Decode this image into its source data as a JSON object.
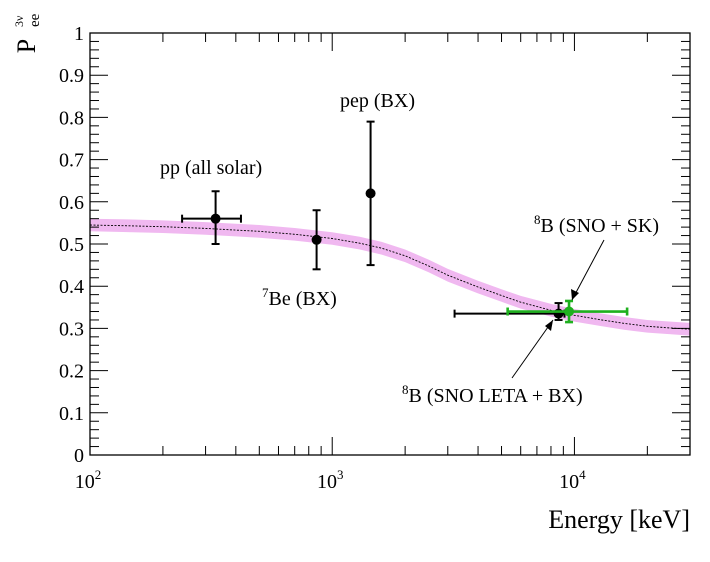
{
  "chart_data": {
    "type": "scatter",
    "xscale": "log",
    "xlim": [
      100,
      30000
    ],
    "ylim": [
      0,
      1
    ],
    "xlabel": "Energy [keV]",
    "ylabel_main": "P",
    "ylabel_sup": "3ν",
    "ylabel_sub": "ee",
    "y_ticks": [
      {
        "v": 0,
        "label": "0"
      },
      {
        "v": 0.1,
        "label": "0.1"
      },
      {
        "v": 0.2,
        "label": "0.2"
      },
      {
        "v": 0.3,
        "label": "0.3"
      },
      {
        "v": 0.4,
        "label": "0.4"
      },
      {
        "v": 0.5,
        "label": "0.5"
      },
      {
        "v": 0.6,
        "label": "0.6"
      },
      {
        "v": 0.7,
        "label": "0.7"
      },
      {
        "v": 0.8,
        "label": "0.8"
      },
      {
        "v": 0.9,
        "label": "0.9"
      },
      {
        "v": 1,
        "label": "1"
      }
    ],
    "x_ticks": [
      {
        "v": 100,
        "base": "10",
        "exp": "2"
      },
      {
        "v": 1000,
        "base": "10",
        "exp": "3"
      },
      {
        "v": 10000,
        "base": "10",
        "exp": "4"
      }
    ],
    "band": {
      "color": "#f0b8f0",
      "half_width": 0.015,
      "x": [
        100,
        150,
        200,
        300,
        400,
        500,
        700,
        1000,
        1300,
        1600,
        2000,
        2500,
        3000,
        4000,
        5000,
        6000,
        7000,
        8000,
        10000,
        13000,
        16000,
        20000,
        25000,
        30000
      ],
      "y": [
        0.545,
        0.543,
        0.541,
        0.537,
        0.533,
        0.53,
        0.523,
        0.513,
        0.502,
        0.49,
        0.472,
        0.448,
        0.426,
        0.398,
        0.378,
        0.362,
        0.352,
        0.343,
        0.331,
        0.32,
        0.312,
        0.305,
        0.301,
        0.298
      ]
    },
    "points": [
      {
        "name": "pp (all solar)",
        "x": 330,
        "y": 0.56,
        "xerr": [
          240,
          420
        ],
        "yerr": [
          0.5,
          0.625
        ],
        "color": "#000000"
      },
      {
        "name": "7Be (BX)",
        "x": 862,
        "y": 0.51,
        "xerr": null,
        "yerr": [
          0.44,
          0.58
        ],
        "color": "#000000"
      },
      {
        "name": "pep (BX)",
        "x": 1440,
        "y": 0.62,
        "xerr": null,
        "yerr": [
          0.45,
          0.79
        ],
        "color": "#000000"
      },
      {
        "name": "8B (SNO LETA + BX)",
        "x": 8600,
        "y": 0.335,
        "xerr": [
          3200,
          9100
        ],
        "yerr": [
          0.32,
          0.36
        ],
        "color": "#000000"
      },
      {
        "name": "8B (SNO + SK)",
        "x": 9500,
        "y": 0.34,
        "xerr": [
          5300,
          16500
        ],
        "yerr": [
          0.315,
          0.365
        ],
        "color": "#1fb01f"
      }
    ],
    "annotations": {
      "pp": "pp (all solar)",
      "be_sup": "7",
      "be_text": "Be (BX)",
      "pep": "pep (BX)",
      "b8_sk_sup": "8",
      "b8_sk_text": "B (SNO + SK)",
      "b8_leta_sup": "8",
      "b8_leta_text": "B (SNO LETA + BX)"
    }
  }
}
